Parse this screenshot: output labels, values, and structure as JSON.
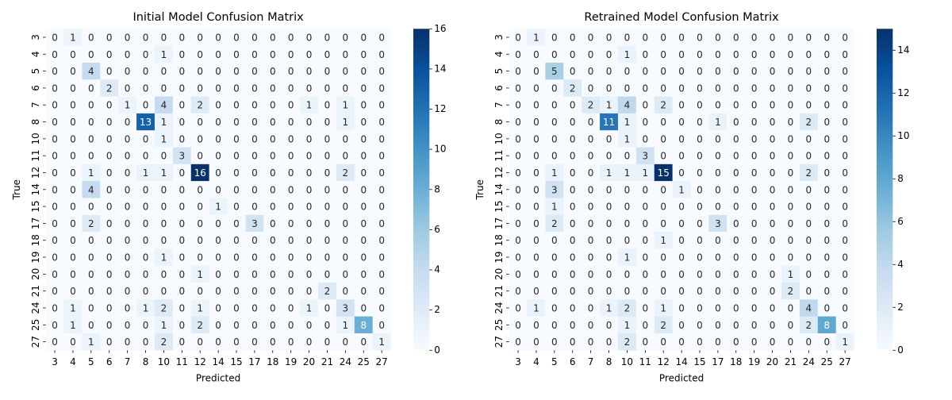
{
  "chart_data": [
    {
      "type": "heatmap",
      "title": "Initial Model Confusion Matrix",
      "x_label": "Predicted",
      "y_label": "True",
      "colormap": "Blues",
      "x": [
        "3",
        "4",
        "5",
        "6",
        "7",
        "8",
        "10",
        "11",
        "12",
        "14",
        "15",
        "17",
        "18",
        "19",
        "20",
        "21",
        "24",
        "25",
        "27"
      ],
      "y": [
        "3",
        "4",
        "5",
        "6",
        "7",
        "8",
        "10",
        "11",
        "12",
        "14",
        "15",
        "17",
        "18",
        "19",
        "20",
        "21",
        "24",
        "25",
        "27"
      ],
      "values": [
        [
          0,
          1,
          0,
          0,
          0,
          0,
          0,
          0,
          0,
          0,
          0,
          0,
          0,
          0,
          0,
          0,
          0,
          0,
          0
        ],
        [
          0,
          0,
          0,
          0,
          0,
          0,
          1,
          0,
          0,
          0,
          0,
          0,
          0,
          0,
          0,
          0,
          0,
          0,
          0
        ],
        [
          0,
          0,
          4,
          0,
          0,
          0,
          0,
          0,
          0,
          0,
          0,
          0,
          0,
          0,
          0,
          0,
          0,
          0,
          0
        ],
        [
          0,
          0,
          0,
          2,
          0,
          0,
          0,
          0,
          0,
          0,
          0,
          0,
          0,
          0,
          0,
          0,
          0,
          0,
          0
        ],
        [
          0,
          0,
          0,
          0,
          1,
          0,
          4,
          0,
          2,
          0,
          0,
          0,
          0,
          0,
          1,
          0,
          1,
          0,
          0
        ],
        [
          0,
          0,
          0,
          0,
          0,
          13,
          1,
          0,
          0,
          0,
          0,
          0,
          0,
          0,
          0,
          0,
          1,
          0,
          0
        ],
        [
          0,
          0,
          0,
          0,
          0,
          0,
          1,
          0,
          0,
          0,
          0,
          0,
          0,
          0,
          0,
          0,
          0,
          0,
          0
        ],
        [
          0,
          0,
          0,
          0,
          0,
          0,
          0,
          3,
          0,
          0,
          0,
          0,
          0,
          0,
          0,
          0,
          0,
          0,
          0
        ],
        [
          0,
          0,
          1,
          0,
          0,
          1,
          1,
          0,
          16,
          0,
          0,
          0,
          0,
          0,
          0,
          0,
          2,
          0,
          0
        ],
        [
          0,
          0,
          4,
          0,
          0,
          0,
          0,
          0,
          0,
          0,
          0,
          0,
          0,
          0,
          0,
          0,
          0,
          0,
          0
        ],
        [
          0,
          0,
          0,
          0,
          0,
          0,
          0,
          0,
          0,
          1,
          0,
          0,
          0,
          0,
          0,
          0,
          0,
          0,
          0
        ],
        [
          0,
          0,
          2,
          0,
          0,
          0,
          0,
          0,
          0,
          0,
          0,
          3,
          0,
          0,
          0,
          0,
          0,
          0,
          0
        ],
        [
          0,
          0,
          0,
          0,
          0,
          0,
          0,
          0,
          0,
          0,
          0,
          0,
          0,
          0,
          0,
          0,
          0,
          0,
          0
        ],
        [
          0,
          0,
          0,
          0,
          0,
          0,
          1,
          0,
          0,
          0,
          0,
          0,
          0,
          0,
          0,
          0,
          0,
          0,
          0
        ],
        [
          0,
          0,
          0,
          0,
          0,
          0,
          0,
          0,
          1,
          0,
          0,
          0,
          0,
          0,
          0,
          0,
          0,
          0,
          0
        ],
        [
          0,
          0,
          0,
          0,
          0,
          0,
          0,
          0,
          0,
          0,
          0,
          0,
          0,
          0,
          0,
          2,
          0,
          0,
          0
        ],
        [
          0,
          1,
          0,
          0,
          0,
          1,
          2,
          0,
          1,
          0,
          0,
          0,
          0,
          0,
          1,
          0,
          3,
          0,
          0
        ],
        [
          0,
          1,
          0,
          0,
          0,
          0,
          1,
          0,
          2,
          0,
          0,
          0,
          0,
          0,
          0,
          0,
          1,
          8,
          0
        ],
        [
          0,
          0,
          1,
          0,
          0,
          0,
          2,
          0,
          0,
          0,
          0,
          0,
          0,
          0,
          0,
          0,
          0,
          0,
          1
        ]
      ],
      "clim": [
        0,
        16
      ],
      "cticks": [
        0,
        2,
        4,
        6,
        8,
        10,
        12,
        14,
        16
      ]
    },
    {
      "type": "heatmap",
      "title": "Retrained Model Confusion Matrix",
      "x_label": "Predicted",
      "y_label": "True",
      "colormap": "Blues",
      "x": [
        "3",
        "4",
        "5",
        "6",
        "7",
        "8",
        "10",
        "11",
        "12",
        "14",
        "15",
        "17",
        "18",
        "19",
        "20",
        "21",
        "24",
        "25",
        "27"
      ],
      "y": [
        "3",
        "4",
        "5",
        "6",
        "7",
        "8",
        "10",
        "11",
        "12",
        "14",
        "15",
        "17",
        "18",
        "19",
        "20",
        "21",
        "24",
        "25",
        "27"
      ],
      "values": [
        [
          0,
          1,
          0,
          0,
          0,
          0,
          0,
          0,
          0,
          0,
          0,
          0,
          0,
          0,
          0,
          0,
          0,
          0,
          0
        ],
        [
          0,
          0,
          0,
          0,
          0,
          0,
          1,
          0,
          0,
          0,
          0,
          0,
          0,
          0,
          0,
          0,
          0,
          0,
          0
        ],
        [
          0,
          0,
          5,
          0,
          0,
          0,
          0,
          0,
          0,
          0,
          0,
          0,
          0,
          0,
          0,
          0,
          0,
          0,
          0
        ],
        [
          0,
          0,
          0,
          2,
          0,
          0,
          0,
          0,
          0,
          0,
          0,
          0,
          0,
          0,
          0,
          0,
          0,
          0,
          0
        ],
        [
          0,
          0,
          0,
          0,
          2,
          1,
          4,
          0,
          2,
          0,
          0,
          0,
          0,
          0,
          0,
          0,
          0,
          0,
          0
        ],
        [
          0,
          0,
          0,
          0,
          0,
          11,
          1,
          0,
          0,
          0,
          0,
          1,
          0,
          0,
          0,
          0,
          2,
          0,
          0
        ],
        [
          0,
          0,
          0,
          0,
          0,
          0,
          1,
          0,
          0,
          0,
          0,
          0,
          0,
          0,
          0,
          0,
          0,
          0,
          0
        ],
        [
          0,
          0,
          0,
          0,
          0,
          0,
          0,
          3,
          0,
          0,
          0,
          0,
          0,
          0,
          0,
          0,
          0,
          0,
          0
        ],
        [
          0,
          0,
          1,
          0,
          0,
          1,
          1,
          1,
          15,
          0,
          0,
          0,
          0,
          0,
          0,
          0,
          2,
          0,
          0
        ],
        [
          0,
          0,
          3,
          0,
          0,
          0,
          0,
          0,
          0,
          1,
          0,
          0,
          0,
          0,
          0,
          0,
          0,
          0,
          0
        ],
        [
          0,
          0,
          1,
          0,
          0,
          0,
          0,
          0,
          0,
          0,
          0,
          0,
          0,
          0,
          0,
          0,
          0,
          0,
          0
        ],
        [
          0,
          0,
          2,
          0,
          0,
          0,
          0,
          0,
          0,
          0,
          0,
          3,
          0,
          0,
          0,
          0,
          0,
          0,
          0
        ],
        [
          0,
          0,
          0,
          0,
          0,
          0,
          0,
          0,
          1,
          0,
          0,
          0,
          0,
          0,
          0,
          0,
          0,
          0,
          0
        ],
        [
          0,
          0,
          0,
          0,
          0,
          0,
          1,
          0,
          0,
          0,
          0,
          0,
          0,
          0,
          0,
          0,
          0,
          0,
          0
        ],
        [
          0,
          0,
          0,
          0,
          0,
          0,
          0,
          0,
          0,
          0,
          0,
          0,
          0,
          0,
          0,
          1,
          0,
          0,
          0
        ],
        [
          0,
          0,
          0,
          0,
          0,
          0,
          0,
          0,
          0,
          0,
          0,
          0,
          0,
          0,
          0,
          2,
          0,
          0,
          0
        ],
        [
          0,
          1,
          0,
          0,
          0,
          1,
          2,
          0,
          1,
          0,
          0,
          0,
          0,
          0,
          0,
          0,
          4,
          0,
          0
        ],
        [
          0,
          0,
          0,
          0,
          0,
          0,
          1,
          0,
          2,
          0,
          0,
          0,
          0,
          0,
          0,
          0,
          2,
          8,
          0
        ],
        [
          0,
          0,
          0,
          0,
          0,
          0,
          2,
          0,
          0,
          0,
          0,
          0,
          0,
          0,
          0,
          0,
          0,
          0,
          1
        ]
      ],
      "clim": [
        0,
        15
      ],
      "cticks": [
        0,
        2,
        4,
        6,
        8,
        10,
        12,
        14
      ]
    }
  ]
}
